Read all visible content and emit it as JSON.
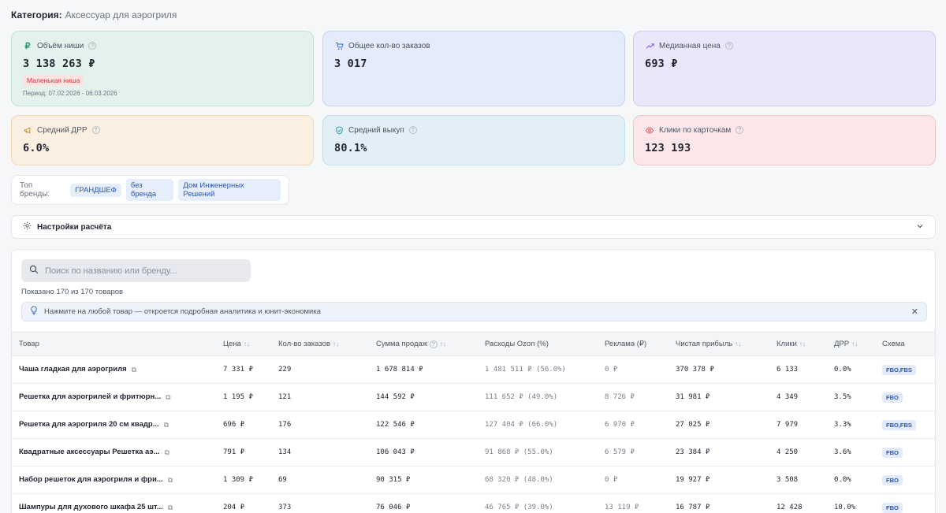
{
  "category": {
    "label": "Категория:",
    "value": "Аксессуар для аэрогриля"
  },
  "cards": {
    "niche": {
      "title": "Объём ниши",
      "value": "3 138 263 ₽",
      "badge": "Маленькая ниша",
      "period": "Период: 07.02.2026 - 06.03.2026",
      "icon": "ruble-icon"
    },
    "orders": {
      "title": "Общее кол-во заказов",
      "value": "3 017",
      "icon": "cart-icon"
    },
    "median": {
      "title": "Медианная цена",
      "value": "693 ₽",
      "icon": "trend-up-icon"
    },
    "drr": {
      "title": "Средний ДРР",
      "value": "6.0%",
      "icon": "megaphone-icon"
    },
    "buyout": {
      "title": "Средний выкуп",
      "value": "80.1%",
      "icon": "shield-check-icon"
    },
    "clicks": {
      "title": "Клики по карточкам",
      "value": "123 193",
      "icon": "eye-icon"
    }
  },
  "brands": {
    "label": "Топ бренды:",
    "items": [
      "ГРАНДШЕФ",
      "без бренда",
      "Дом Инженерных Решений"
    ]
  },
  "settings": {
    "label": "Настройки расчёта"
  },
  "search": {
    "placeholder": "Поиск по названию или бренду..."
  },
  "shown": "Показано 170 из 170 товаров",
  "hint": "Нажмите на любой товар — откроется подробная аналитика и юнит-экономика",
  "table": {
    "headers": [
      "Товар",
      "Цена",
      "Кол-во заказов",
      "Сумма продаж",
      "Расходы Ozon (%)",
      "Реклама (₽)",
      "Чистая прибыль",
      "Клики",
      "ДРР",
      "Схема"
    ],
    "rows": [
      [
        "Чаша гладкая для аэрогриля",
        "7 331 ₽",
        "229",
        "1 678 814 ₽",
        "1 481 511 ₽ (56.0%)",
        "0 ₽",
        "370 378 ₽",
        "6 133",
        "0.0%",
        "FBO,FBS"
      ],
      [
        "Решетка для аэрогрилей и фритюрн...",
        "1 195 ₽",
        "121",
        "144 592 ₽",
        "111 652 ₽ (49.0%)",
        "8 726 ₽",
        "31 981 ₽",
        "4 349",
        "3.5%",
        "FBO"
      ],
      [
        "Решетка для аэрогриля 20 см квадр...",
        "696 ₽",
        "176",
        "122 546 ₽",
        "127 404 ₽ (66.0%)",
        "6 970 ₽",
        "27 025 ₽",
        "7 979",
        "3.3%",
        "FBO,FBS"
      ],
      [
        "Квадратные аксессуары Решетка аэ...",
        "791 ₽",
        "134",
        "106 043 ₽",
        "91 868 ₽ (55.0%)",
        "6 579 ₽",
        "23 384 ₽",
        "4 250",
        "3.6%",
        "FBO"
      ],
      [
        "Набор решеток для аэрогриля и фри...",
        "1 309 ₽",
        "69",
        "90 315 ₽",
        "68 320 ₽ (48.0%)",
        "0 ₽",
        "19 927 ₽",
        "3 508",
        "0.0%",
        "FBO"
      ],
      [
        "Шампуры для духового шкафа 25 шт...",
        "204 ₽",
        "373",
        "76 046 ₽",
        "46 765 ₽ (39.0%)",
        "13 119 ₽",
        "16 787 ₽",
        "12 428",
        "10.0%",
        "FBO"
      ]
    ]
  }
}
